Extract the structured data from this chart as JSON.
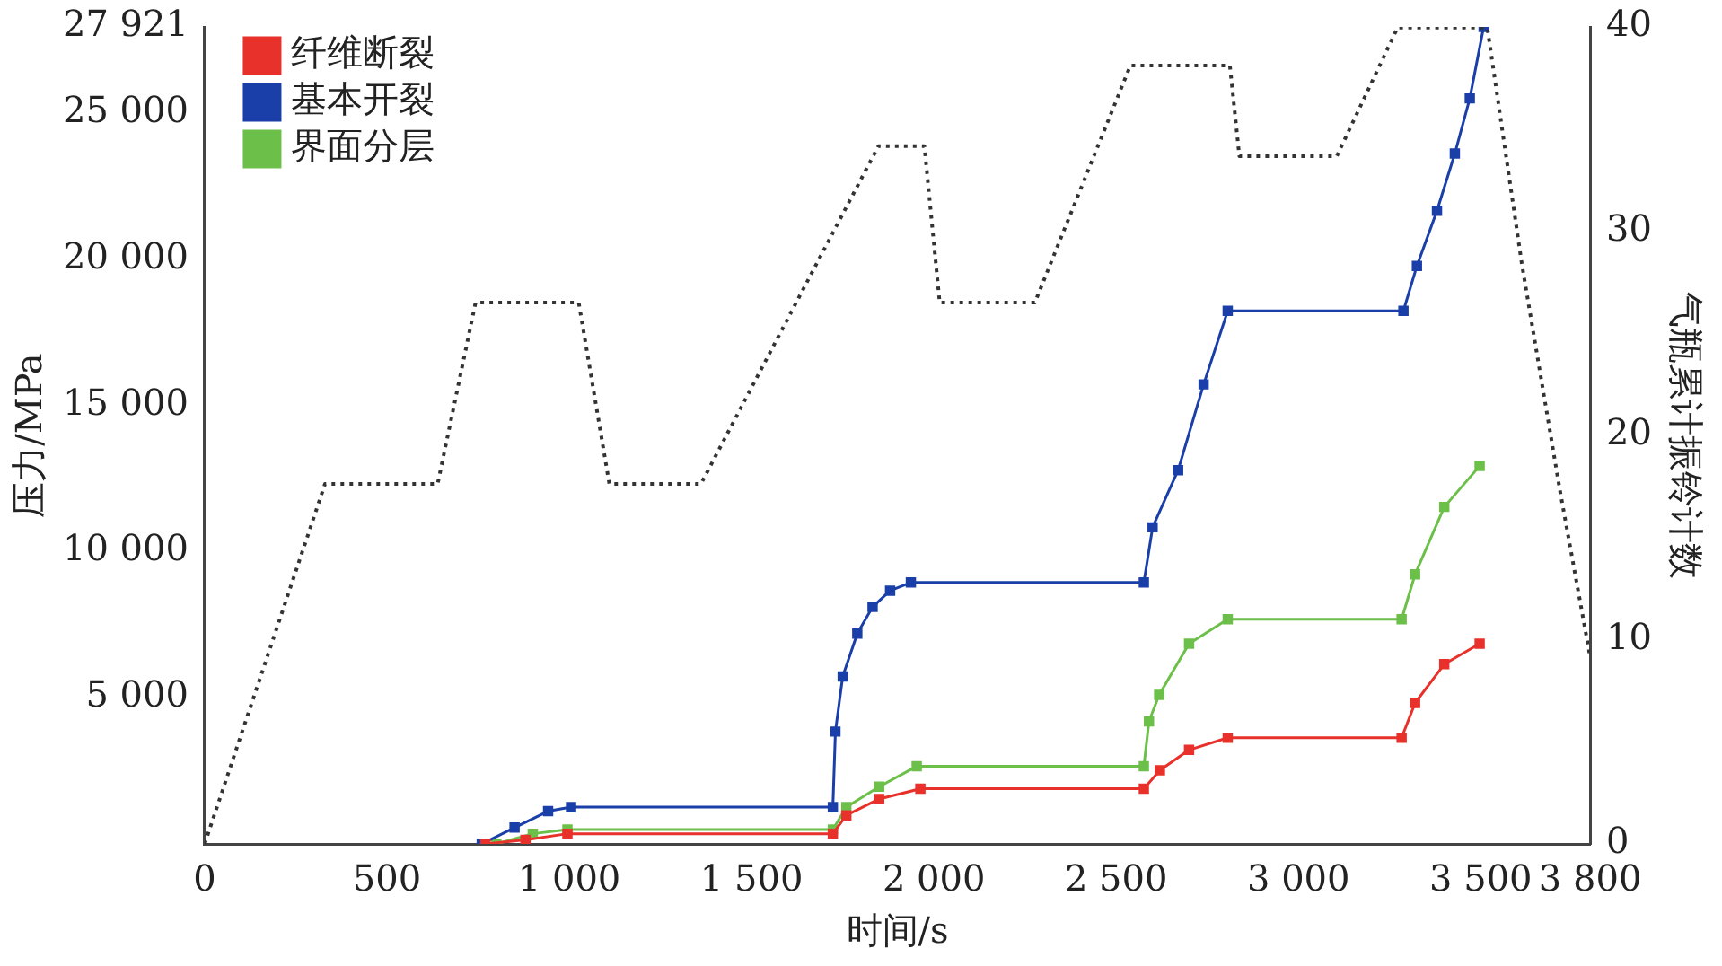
{
  "chart_data": {
    "type": "line",
    "xlabel": "时间/s",
    "ylabel": "压力/MPa",
    "y2label": "气瓶累计振铃计数",
    "xlim": [
      0,
      3800
    ],
    "xticks": [
      0,
      500,
      {
        "value": 1000,
        "label": "1 000"
      },
      {
        "value": 1500,
        "label": "1 500"
      },
      {
        "value": 2000,
        "label": "2 000"
      },
      {
        "value": 2500,
        "label": "2 500"
      },
      {
        "value": 3000,
        "label": "3 000"
      },
      {
        "value": 3500,
        "label": "3 500"
      },
      {
        "value": 3800,
        "label": "3 800"
      }
    ],
    "ylim": [
      0,
      27921
    ],
    "yticks": [
      {
        "value": 5000,
        "label": "5 000"
      },
      {
        "value": 10000,
        "label": "10 000"
      },
      {
        "value": 15000,
        "label": "15 000"
      },
      {
        "value": 20000,
        "label": "20 000"
      },
      {
        "value": 25000,
        "label": "25 000"
      },
      {
        "value": 27921,
        "label": "27 921"
      }
    ],
    "y2lim": [
      0,
      40
    ],
    "y2ticks": [
      0,
      10,
      20,
      30,
      40
    ],
    "legend": "top left",
    "grid": false,
    "series": [
      {
        "color": "#333333",
        "line_style": "dotted",
        "marker": "none",
        "x": [
          0,
          330,
          639,
          743,
          1026,
          1110,
          1361,
          1848,
          1974,
          2016,
          2277,
          2539,
          2812,
          2838,
          3105,
          3272,
          3518,
          3613,
          3717,
          3800
        ],
        "values": [
          0,
          12300,
          12300,
          18500,
          18500,
          12300,
          12300,
          23850,
          23850,
          18500,
          18500,
          26600,
          26600,
          23500,
          23500,
          27900,
          27900,
          19800,
          12100,
          6400
        ]
      },
      {
        "name": "纤维断裂",
        "color": "#e8312a",
        "axis": "y2",
        "marker": "square",
        "x": [
          770,
          880,
          995,
          1723,
          1760,
          1850,
          1963,
          2576,
          2620,
          2700,
          2806,
          3283,
          3320,
          3400,
          3497
        ],
        "values": [
          0,
          0.2,
          0.5,
          0.5,
          1.4,
          2.2,
          2.7,
          2.7,
          3.6,
          4.6,
          5.2,
          5.2,
          6.9,
          8.8,
          9.8
        ]
      },
      {
        "name": "基本开裂",
        "color": "#1a3fa8",
        "axis": "y2",
        "marker": "square",
        "x": [
          760,
          850,
          942,
          1005,
          1723,
          1730,
          1750,
          1790,
          1832,
          1880,
          1937,
          2576,
          2600,
          2670,
          2740,
          2806,
          3288,
          3325,
          3380,
          3429,
          3470,
          3508
        ],
        "values": [
          0,
          0.8,
          1.6,
          1.8,
          1.8,
          5.5,
          8.2,
          10.3,
          11.6,
          12.4,
          12.8,
          12.8,
          15.5,
          18.3,
          22.5,
          26.1,
          26.1,
          28.3,
          31,
          33.8,
          36.5,
          40
        ]
      },
      {
        "name": "界面分层",
        "color": "#6cc04a",
        "axis": "y2",
        "marker": "square",
        "x": [
          800,
          900,
          995,
          1723,
          1760,
          1850,
          1953,
          2576,
          2590,
          2618,
          2700,
          2806,
          3283,
          3320,
          3400,
          3497
        ],
        "values": [
          0,
          0.5,
          0.7,
          0.7,
          1.8,
          2.8,
          3.8,
          3.8,
          6,
          7.3,
          9.8,
          11,
          11,
          13.2,
          16.5,
          18.5
        ]
      }
    ]
  }
}
